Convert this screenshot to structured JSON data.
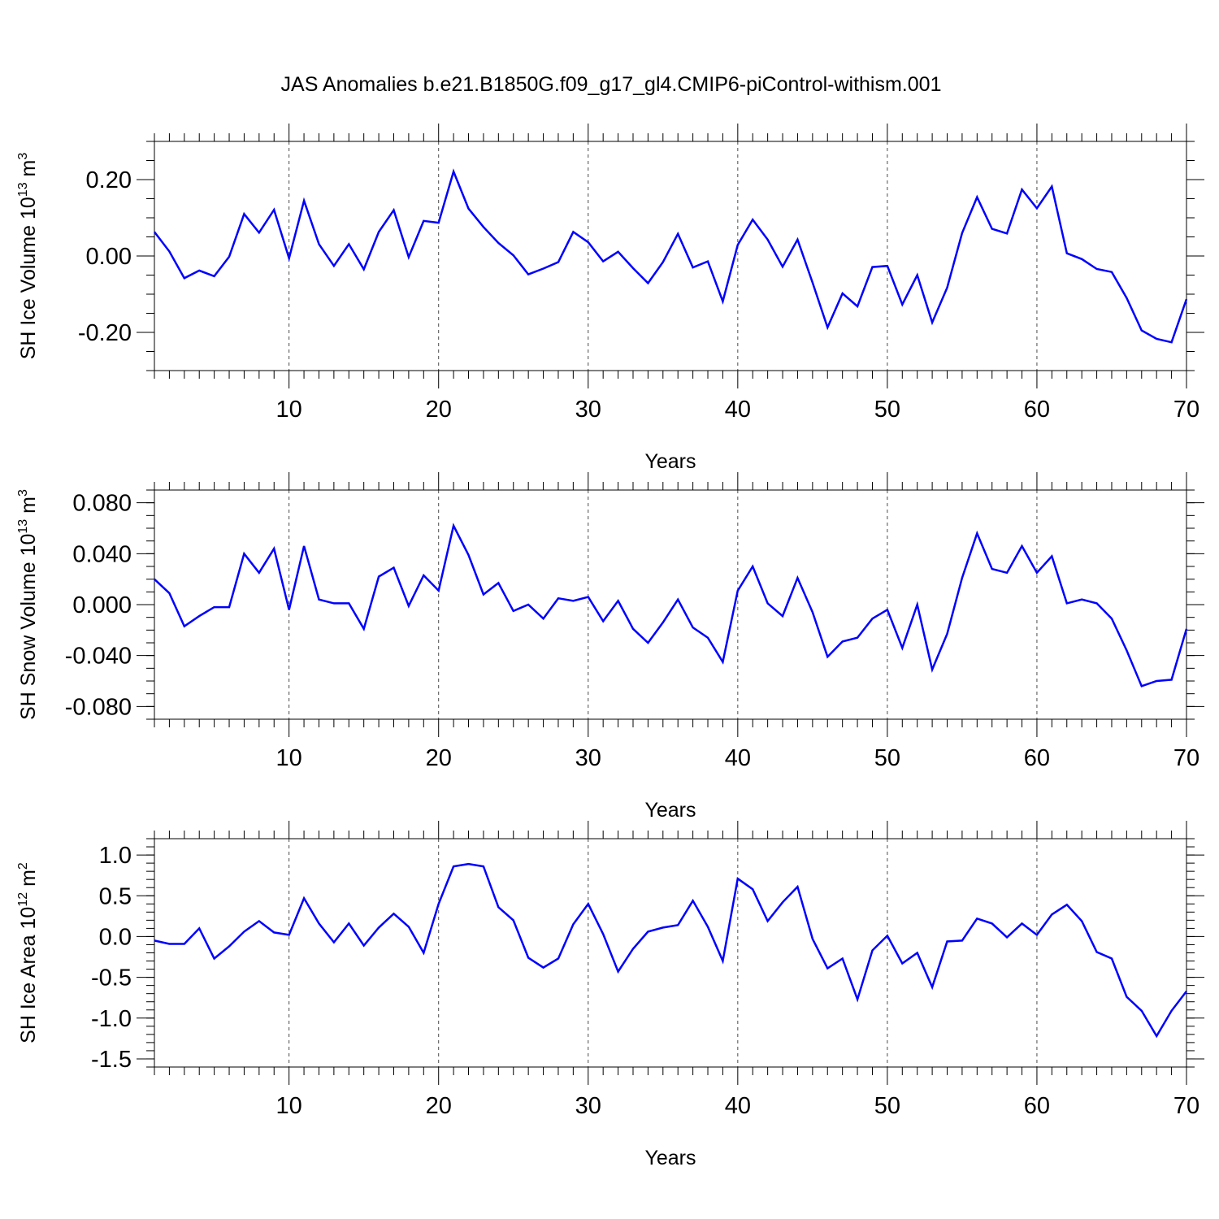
{
  "chart_data": [
    {
      "type": "line",
      "title": "JAS Anomalies b.e21.B1850G.f09_g17_gl4.CMIP6-piControl-withism.001",
      "xlabel": "Years",
      "ylabel_text": "SH Ice Volume 10",
      "ylabel_exp": "13",
      "ylabel_unit": " m",
      "ylabel_unit_exp": "3",
      "xlim": [
        1,
        70
      ],
      "ylim": [
        -0.3,
        0.3
      ],
      "xticks": [
        10,
        20,
        30,
        40,
        50,
        60,
        70
      ],
      "yticks": [
        0.2,
        0.0,
        -0.2
      ],
      "ytick_labels": [
        "0.20",
        "0.00",
        "-0.20"
      ],
      "ytick_minor_step": 0.05,
      "grid": "vertical-dashed",
      "series": [
        {
          "color": "#0000ff",
          "x": [
            1,
            2,
            3,
            4,
            5,
            6,
            7,
            8,
            9,
            10,
            11,
            12,
            13,
            14,
            15,
            16,
            17,
            18,
            19,
            20,
            21,
            22,
            23,
            24,
            25,
            26,
            27,
            28,
            29,
            30,
            31,
            32,
            33,
            34,
            35,
            36,
            37,
            38,
            39,
            40,
            41,
            42,
            43,
            44,
            45,
            46,
            47,
            48,
            49,
            50,
            51,
            52,
            53,
            54,
            55,
            56,
            57,
            58,
            59,
            60,
            61,
            62,
            63,
            64,
            65,
            66,
            67,
            68,
            69,
            70
          ],
          "values": [
            0.063,
            0.012,
            -0.058,
            -0.038,
            -0.053,
            -0.002,
            0.11,
            0.061,
            0.121,
            -0.006,
            0.145,
            0.031,
            -0.026,
            0.031,
            -0.035,
            0.063,
            0.12,
            -0.003,
            0.092,
            0.087,
            0.221,
            0.124,
            0.076,
            0.034,
            0.002,
            -0.048,
            -0.033,
            -0.016,
            0.063,
            0.036,
            -0.014,
            0.011,
            -0.032,
            -0.071,
            -0.016,
            0.058,
            -0.03,
            -0.014,
            -0.119,
            0.029,
            0.095,
            0.043,
            -0.028,
            0.043,
            -0.07,
            -0.187,
            -0.098,
            -0.132,
            -0.029,
            -0.026,
            -0.127,
            -0.05,
            -0.174,
            -0.083,
            0.06,
            0.154,
            0.071,
            0.059,
            0.174,
            0.125,
            0.182,
            0.007,
            -0.008,
            -0.034,
            -0.042,
            -0.11,
            -0.195,
            -0.217,
            -0.226,
            -0.113
          ]
        }
      ]
    },
    {
      "type": "line",
      "xlabel": "Years",
      "ylabel_text": "SH Snow Volume 10",
      "ylabel_exp": "13",
      "ylabel_unit": " m",
      "ylabel_unit_exp": "3",
      "xlim": [
        1,
        70
      ],
      "ylim": [
        -0.09,
        0.09
      ],
      "xticks": [
        10,
        20,
        30,
        40,
        50,
        60,
        70
      ],
      "yticks": [
        0.08,
        0.04,
        0.0,
        -0.04,
        -0.08
      ],
      "ytick_labels": [
        "0.080",
        "0.040",
        "0.000",
        "-0.040",
        "-0.080"
      ],
      "ytick_minor_step": 0.01,
      "grid": "vertical-dashed",
      "series": [
        {
          "color": "#0000ff",
          "x": [
            1,
            2,
            3,
            4,
            5,
            6,
            7,
            8,
            9,
            10,
            11,
            12,
            13,
            14,
            15,
            16,
            17,
            18,
            19,
            20,
            21,
            22,
            23,
            24,
            25,
            26,
            27,
            28,
            29,
            30,
            31,
            32,
            33,
            34,
            35,
            36,
            37,
            38,
            39,
            40,
            41,
            42,
            43,
            44,
            45,
            46,
            47,
            48,
            49,
            50,
            51,
            52,
            53,
            54,
            55,
            56,
            57,
            58,
            59,
            60,
            61,
            62,
            63,
            64,
            65,
            66,
            67,
            68,
            69,
            70
          ],
          "values": [
            0.02,
            0.009,
            -0.017,
            -0.009,
            -0.002,
            -0.002,
            0.04,
            0.025,
            0.044,
            -0.004,
            0.046,
            0.004,
            0.001,
            0.001,
            -0.019,
            0.022,
            0.029,
            -0.001,
            0.023,
            0.011,
            0.062,
            0.039,
            0.008,
            0.017,
            -0.005,
            0.0,
            -0.011,
            0.005,
            0.003,
            0.006,
            -0.013,
            0.003,
            -0.019,
            -0.03,
            -0.014,
            0.004,
            -0.018,
            -0.026,
            -0.045,
            0.011,
            0.03,
            0.001,
            -0.009,
            0.021,
            -0.006,
            -0.041,
            -0.029,
            -0.026,
            -0.011,
            -0.004,
            -0.034,
            0.0,
            -0.051,
            -0.023,
            0.021,
            0.056,
            0.028,
            0.025,
            0.046,
            0.025,
            0.038,
            0.001,
            0.004,
            0.001,
            -0.011,
            -0.036,
            -0.064,
            -0.06,
            -0.059,
            -0.019
          ]
        }
      ]
    },
    {
      "type": "line",
      "xlabel": "Years",
      "ylabel_text": "SH Ice Area 10",
      "ylabel_exp": "12",
      "ylabel_unit": " m",
      "ylabel_unit_exp": "2",
      "xlim": [
        1,
        70
      ],
      "ylim": [
        -1.6,
        1.2
      ],
      "xticks": [
        10,
        20,
        30,
        40,
        50,
        60,
        70
      ],
      "yticks": [
        1.0,
        0.5,
        0.0,
        -0.5,
        -1.0,
        -1.5
      ],
      "ytick_labels": [
        "1.0",
        "0.5",
        "0.0",
        "-0.5",
        "-1.0",
        "-1.5"
      ],
      "ytick_minor_step": 0.1,
      "grid": "vertical-dashed",
      "series": [
        {
          "color": "#0000ff",
          "x": [
            1,
            2,
            3,
            4,
            5,
            6,
            7,
            8,
            9,
            10,
            11,
            12,
            13,
            14,
            15,
            16,
            17,
            18,
            19,
            20,
            21,
            22,
            23,
            24,
            25,
            26,
            27,
            28,
            29,
            30,
            31,
            32,
            33,
            34,
            35,
            36,
            37,
            38,
            39,
            40,
            41,
            42,
            43,
            44,
            45,
            46,
            47,
            48,
            49,
            50,
            51,
            52,
            53,
            54,
            55,
            56,
            57,
            58,
            59,
            60,
            61,
            62,
            63,
            64,
            65,
            66,
            67,
            68,
            69,
            70
          ],
          "values": [
            -0.05,
            -0.09,
            -0.09,
            0.1,
            -0.27,
            -0.12,
            0.06,
            0.19,
            0.05,
            0.02,
            0.47,
            0.16,
            -0.07,
            0.16,
            -0.11,
            0.11,
            0.28,
            0.12,
            -0.2,
            0.4,
            0.86,
            0.89,
            0.86,
            0.36,
            0.2,
            -0.26,
            -0.38,
            -0.27,
            0.15,
            0.4,
            0.03,
            -0.43,
            -0.15,
            0.06,
            0.11,
            0.14,
            0.44,
            0.12,
            -0.3,
            0.71,
            0.58,
            0.19,
            0.42,
            0.61,
            -0.03,
            -0.39,
            -0.27,
            -0.77,
            -0.17,
            0.01,
            -0.33,
            -0.2,
            -0.62,
            -0.06,
            -0.05,
            0.22,
            0.16,
            -0.01,
            0.16,
            0.02,
            0.27,
            0.39,
            0.19,
            -0.19,
            -0.27,
            -0.74,
            -0.91,
            -1.22,
            -0.91,
            -0.67
          ]
        }
      ]
    }
  ]
}
